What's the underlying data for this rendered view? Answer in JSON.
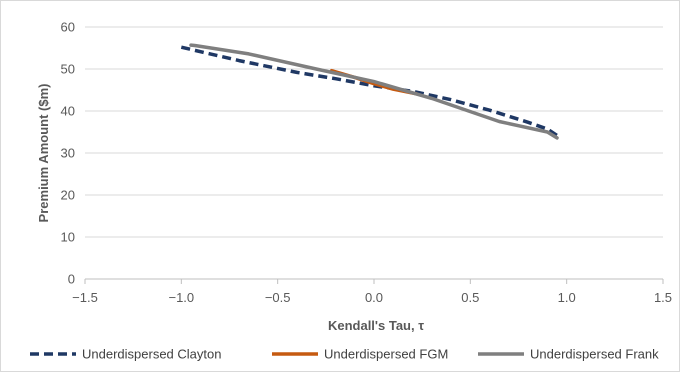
{
  "chart_data": {
    "type": "line",
    "title": "",
    "xlabel": "Kendall's Tau, τ",
    "ylabel": "Premium Amount ($m)",
    "xlim": [
      -1.5,
      1.5
    ],
    "ylim": [
      0,
      60
    ],
    "xticks": [
      -1.5,
      -1.0,
      -0.5,
      0.0,
      0.5,
      1.0,
      1.5
    ],
    "xtick_labels": [
      "−1.5",
      "−1.0",
      "−0.5",
      "0.0",
      "0.5",
      "1.0",
      "1.5"
    ],
    "yticks": [
      0,
      10,
      20,
      30,
      40,
      50,
      60
    ],
    "ytick_labels": [
      "0",
      "10",
      "20",
      "30",
      "40",
      "50",
      "60"
    ],
    "grid": "horizontal",
    "legend_position": "bottom",
    "series": [
      {
        "name": "Underdispersed Clayton",
        "color": "#1f3864",
        "dash": "dashed",
        "x": [
          -1.0,
          -0.7,
          -0.4,
          -0.2,
          0.0,
          0.2,
          0.4,
          0.6,
          0.8,
          0.9,
          0.95
        ],
        "y": [
          55.2,
          52.0,
          49.2,
          47.7,
          46.0,
          44.7,
          42.7,
          40.2,
          37.3,
          35.7,
          34.2
        ]
      },
      {
        "name": "Underdispersed FGM",
        "color": "#c55a11",
        "dash": "solid",
        "x": [
          -0.22,
          -0.1,
          0.0,
          0.1,
          0.22
        ],
        "y": [
          49.6,
          48.0,
          46.5,
          45.2,
          44.1
        ]
      },
      {
        "name": "Underdispersed Frank",
        "color": "#7f7f7f",
        "dash": "solid",
        "x": [
          -0.95,
          -0.93,
          -0.65,
          -0.3,
          0.0,
          0.3,
          0.65,
          0.9,
          0.95
        ],
        "y": [
          55.7,
          55.6,
          53.6,
          50.0,
          47.0,
          43.0,
          37.5,
          35.0,
          33.6
        ]
      }
    ]
  }
}
